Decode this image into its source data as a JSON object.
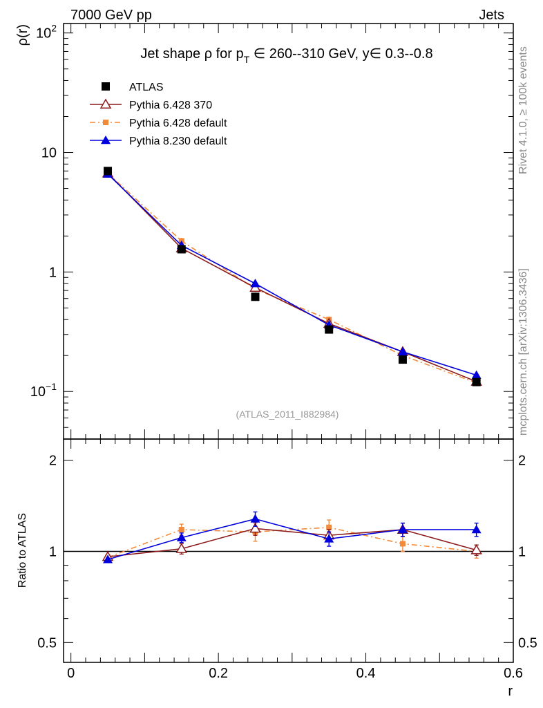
{
  "header": {
    "left": "7000 GeV pp",
    "right": "Jets",
    "side_top": "Rivet 4.1.0, ≥ 100k events",
    "side_bottom": "mcplots.cern.ch [arXiv:1306.3436]"
  },
  "chart_data": [
    {
      "type": "line",
      "title": "Jet shape ρ for pT ∈ 260--310 GeV, y∈ 0.3--0.8",
      "title_parts": {
        "prefix": "Jet shape ρ for p",
        "subscript": "T",
        "suffix": " ∈ 260--310 GeV, y∈ 0.3--0.8"
      },
      "ylabel": "ρ(r)",
      "yscale": "log",
      "ylim": [
        0.04,
        120
      ],
      "xlim": [
        -0.01,
        0.6
      ],
      "yticks": [
        {
          "value": 100,
          "base": "10",
          "exp": "2"
        },
        {
          "value": 10,
          "base": "10",
          "exp": ""
        },
        {
          "value": 1,
          "base": "1",
          "exp": ""
        },
        {
          "value": 0.1,
          "base": "10",
          "exp": "−1"
        }
      ],
      "x": [
        0.05,
        0.15,
        0.25,
        0.35,
        0.45,
        0.55
      ],
      "analysis_label": "(ATLAS_2011_I882984)",
      "series": [
        {
          "name": "ATLAS",
          "color": "#000000",
          "marker": "square",
          "line": "none",
          "values": [
            7.0,
            1.55,
            0.62,
            0.33,
            0.185,
            0.12
          ]
        },
        {
          "name": "Pythia 6.428 370",
          "color": "#8b1a1a",
          "marker": "open-triangle",
          "line": "solid",
          "values": [
            6.7,
            1.58,
            0.74,
            0.37,
            0.215,
            0.121
          ]
        },
        {
          "name": "Pythia 6.428 default",
          "color": "#f28a3a",
          "marker": "small-square",
          "line": "dashdot",
          "values": [
            6.7,
            1.82,
            0.72,
            0.4,
            0.2,
            0.118
          ]
        },
        {
          "name": "Pythia 8.230 default",
          "color": "#0000dd",
          "marker": "triangle",
          "line": "solid",
          "values": [
            6.6,
            1.67,
            0.8,
            0.36,
            0.215,
            0.137
          ]
        }
      ]
    },
    {
      "type": "line",
      "title": "",
      "ylabel": "Ratio to ATLAS",
      "xlabel": "r",
      "yscale": "log",
      "ylim": [
        0.43,
        2.35
      ],
      "yticks": [
        {
          "value": 2,
          "label": "2"
        },
        {
          "value": 1,
          "label": "1"
        },
        {
          "value": 0.5,
          "label": "0.5"
        }
      ],
      "xticks": [
        {
          "value": 0,
          "label": "0"
        },
        {
          "value": 0.2,
          "label": "0.2"
        },
        {
          "value": 0.4,
          "label": "0.4"
        },
        {
          "value": 0.6,
          "label": "0.6"
        }
      ],
      "x": [
        0.05,
        0.15,
        0.25,
        0.35,
        0.45,
        0.55
      ],
      "series": [
        {
          "name": "Pythia 6.428 370",
          "color": "#8b1a1a",
          "values": [
            0.96,
            1.02,
            1.19,
            1.13,
            1.18,
            1.01
          ],
          "errors": [
            0.01,
            0.04,
            0.06,
            0.05,
            0.06,
            0.04
          ]
        },
        {
          "name": "Pythia 6.428 default",
          "color": "#f28a3a",
          "values": [
            0.955,
            1.18,
            1.16,
            1.2,
            1.06,
            1.0
          ],
          "errors": [
            0.01,
            0.05,
            0.08,
            0.07,
            0.06,
            0.05
          ]
        },
        {
          "name": "Pythia 8.230 default",
          "color": "#0000dd",
          "values": [
            0.94,
            1.11,
            1.28,
            1.1,
            1.18,
            1.18
          ],
          "errors": [
            0.01,
            0.04,
            0.07,
            0.06,
            0.06,
            0.06
          ]
        }
      ]
    }
  ]
}
